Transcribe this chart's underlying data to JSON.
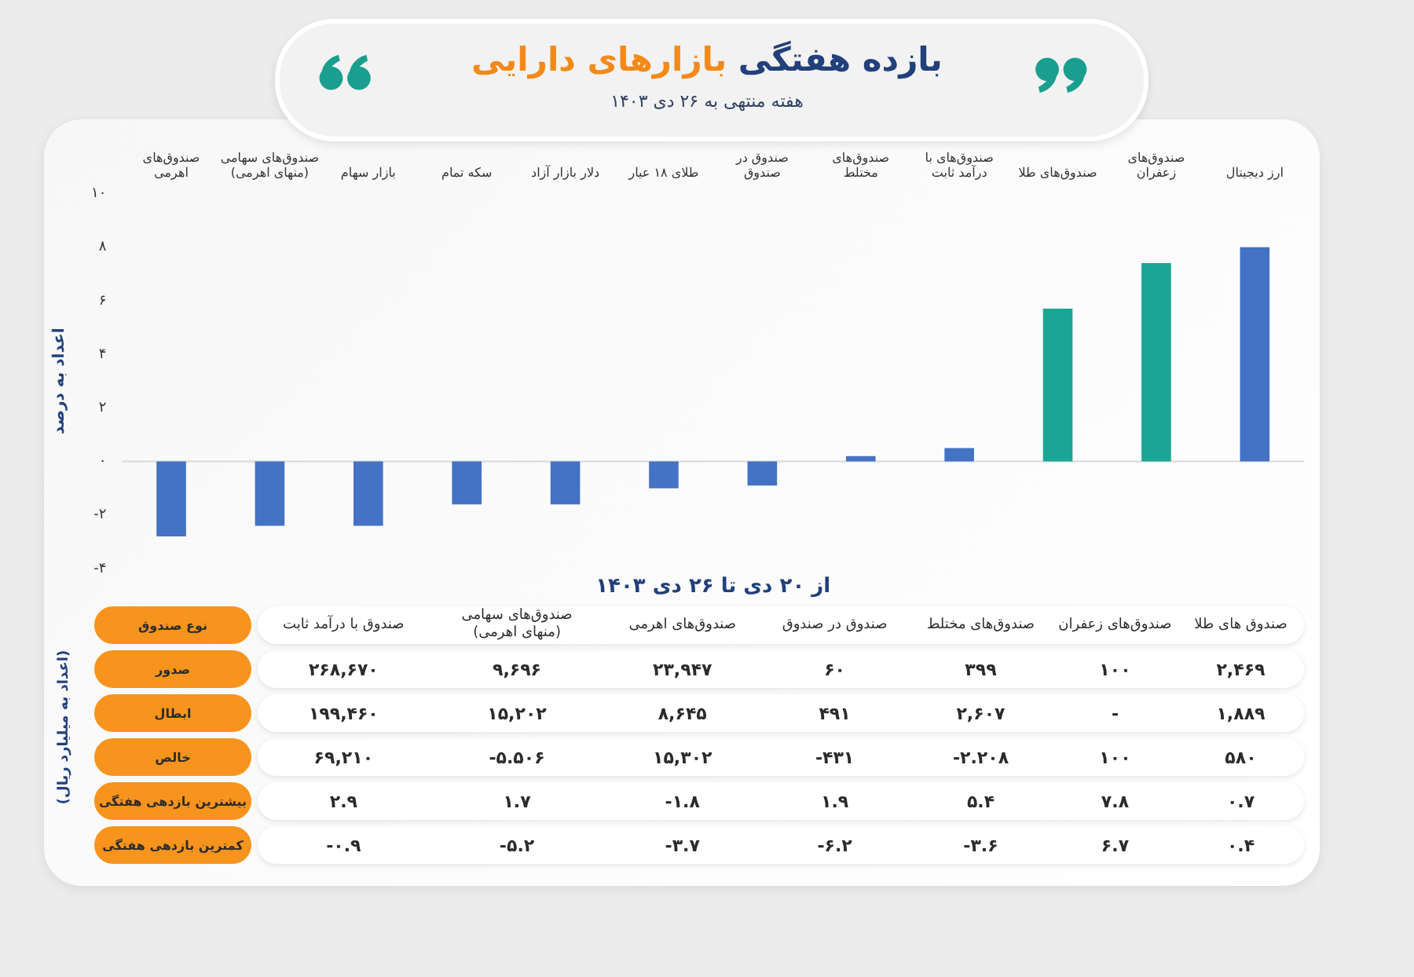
{
  "chart_data": [
    {
      "type": "bar",
      "title": "بازده هفتگی بازارهای دارایی",
      "subtitle": "هفته منتهی به ۲۶ دی ۱۴۰۳",
      "xlabel": "از ۲۰ دی تا ۲۶ دی ۱۴۰۳",
      "ylabel": "اعداد به درصد",
      "categories": [
        "صندوق‌های اهرمی",
        "صندوق‌های سهامی (منهای اهرمی)",
        "بازار سهام",
        "سکه تمام",
        "دلار بازار آزاد",
        "طلای ۱۸ عیار",
        "صندوق در صندوق",
        "صندوق‌های مختلط",
        "صندوق‌های با درآمد ثابت",
        "صندوق‌های طلا",
        "صندوق‌های زعفران",
        "ارز دیجیتال"
      ],
      "values": [
        -2.8,
        -2.4,
        -2.4,
        -1.6,
        -1.6,
        -1.0,
        -0.9,
        0.2,
        0.5,
        5.7,
        7.4,
        8.0
      ],
      "colors": [
        "#4472c4",
        "#4472c4",
        "#4472c4",
        "#4472c4",
        "#4472c4",
        "#4472c4",
        "#4472c4",
        "#4472c4",
        "#4472c4",
        "#1aa595",
        "#1aa595",
        "#4472c4"
      ],
      "ylim": [
        -4,
        10
      ],
      "yticks": [
        {
          "value": -4,
          "label": "-۴"
        },
        {
          "value": -2,
          "label": "-۲"
        },
        {
          "value": 0,
          "label": "۰"
        },
        {
          "value": 2,
          "label": "۲"
        },
        {
          "value": 4,
          "label": "۴"
        },
        {
          "value": 6,
          "label": "۶"
        },
        {
          "value": 8,
          "label": "۸"
        },
        {
          "value": 10,
          "label": "۱۰"
        }
      ],
      "grid": false,
      "legend": false,
      "ref_lines": [
        {
          "axis": "y",
          "value": 0,
          "color": "#d9d9d9"
        }
      ]
    },
    {
      "type": "other",
      "xlabel": "نوع صندوق",
      "ylabel": "(اعداد به میلیارد ریال)",
      "categories": [
        "صندوق با درآمد ثابت",
        "صندوق‌های سهامی (منهای اهرمی)",
        "صندوق‌های اهرمی",
        "صندوق در صندوق",
        "صندوق‌های مختلط",
        "صندوق‌های زعفران",
        "صندوق های طلا"
      ],
      "y_categories": [
        "صدور",
        "ابطال",
        "خالص",
        "بیشترین بازدهی هفتگی",
        "کمترین بازدهی هفتگی"
      ],
      "cell_labels": [
        [
          "۲۶۸,۶۷۰",
          "۹,۶۹۶",
          "۲۳,۹۴۷",
          "۶۰",
          "۳۹۹",
          "۱۰۰",
          "۲,۴۶۹"
        ],
        [
          "۱۹۹,۴۶۰",
          "۱۵,۲۰۲",
          "۸,۶۴۵",
          "۴۹۱",
          "۲,۶۰۷",
          "-",
          "۱,۸۸۹"
        ],
        [
          "۶۹,۲۱۰",
          "-۵.۵۰۶",
          "۱۵,۳۰۲",
          "-۴۳۱",
          "-۲.۲۰۸",
          "۱۰۰",
          "۵۸۰"
        ],
        [
          "۲.۹",
          "۱.۷",
          "-۱.۸",
          "۱.۹",
          "۵.۴",
          "۷.۸",
          "۰.۷"
        ],
        [
          "-۰.۹",
          "-۵.۲",
          "-۳.۷",
          "-۶.۲",
          "-۳.۶",
          "۶.۷",
          "۰.۴"
        ]
      ]
    }
  ]
}
